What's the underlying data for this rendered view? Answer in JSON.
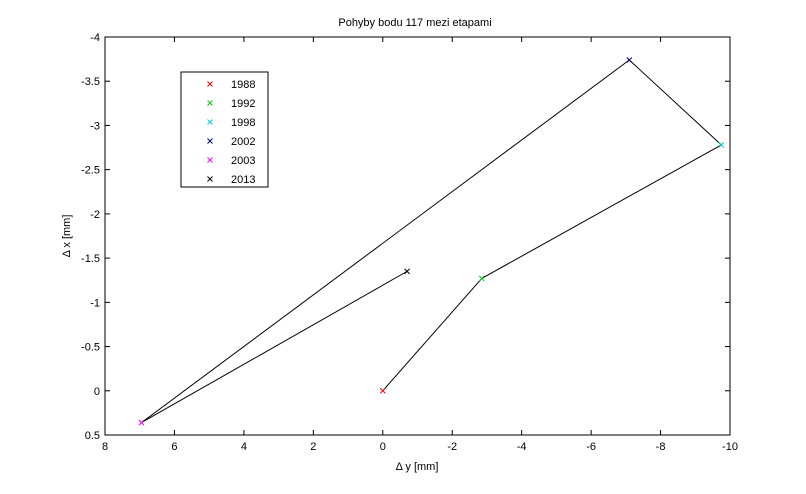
{
  "chart_data": {
    "type": "line",
    "title": "Pohyby bodu 117 mezi etapami",
    "xlabel": "Δ y [mm]",
    "ylabel": "Δ x [mm]",
    "xlim": [
      8,
      -10
    ],
    "ylim": [
      0.5,
      -4
    ],
    "x_reversed": true,
    "y_reversed": true,
    "grid": false,
    "legend_position": "top-left",
    "xticks": [
      8,
      6,
      4,
      2,
      0,
      -2,
      -4,
      -6,
      -8,
      -10
    ],
    "xtick_labels": [
      "8",
      "6",
      "4",
      "2",
      "0",
      "-2",
      "-4",
      "-6",
      "-8",
      "-10"
    ],
    "yticks": [
      -4,
      -3.5,
      -3,
      -2.5,
      -2,
      -1.5,
      -1,
      -0.5,
      0,
      0.5
    ],
    "ytick_labels": [
      "-4",
      "-3.5",
      "-3",
      "-2.5",
      "-2",
      "-1.5",
      "-1",
      "-0.5",
      "0",
      "0.5"
    ],
    "line_color": "#000000",
    "points": [
      {
        "name": "1988",
        "x": 0.0,
        "y": 0.0,
        "color": "#ff0000"
      },
      {
        "name": "1992",
        "x": -2.85,
        "y": -1.27,
        "color": "#00cc00"
      },
      {
        "name": "1998",
        "x": -9.75,
        "y": -2.78,
        "color": "#00cccc"
      },
      {
        "name": "2002",
        "x": -7.1,
        "y": -3.74,
        "color": "#000080"
      },
      {
        "name": "2003",
        "x": 6.95,
        "y": 0.36,
        "color": "#ff00ff"
      },
      {
        "name": "2013",
        "x": -0.7,
        "y": -1.35,
        "color": "#000000"
      }
    ]
  }
}
